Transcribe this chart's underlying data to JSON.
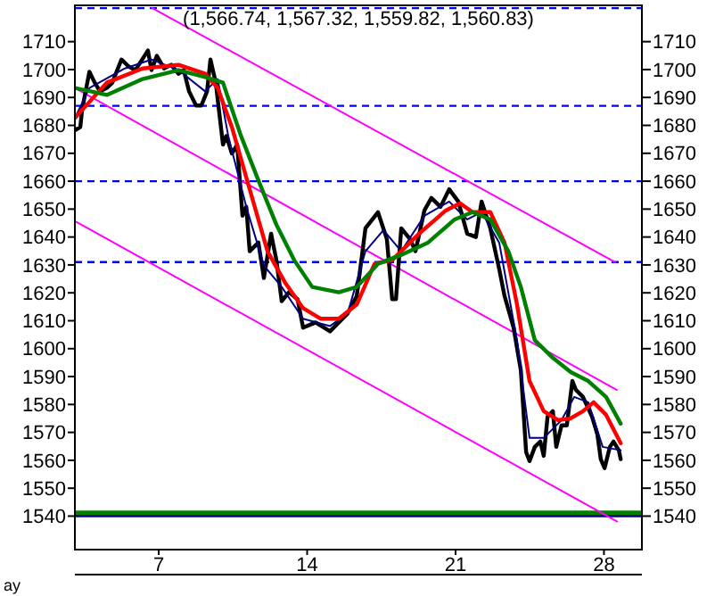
{
  "chart_data": {
    "type": "line",
    "title": "(1,566.74, 1,567.32, 1,559.82, 1,560.83)",
    "annotations": [
      "ay"
    ],
    "xlim": [
      3.045,
      29.79
    ],
    "xticks": [
      7,
      14,
      21,
      28
    ],
    "ylim": [
      1528,
      1723
    ],
    "yticks": [
      1540,
      1550,
      1560,
      1570,
      1580,
      1590,
      1600,
      1610,
      1620,
      1630,
      1640,
      1650,
      1660,
      1670,
      1680,
      1690,
      1700,
      1710
    ],
    "y2lim": [
      1528,
      1723
    ],
    "y2ticks": [
      1540,
      1550,
      1560,
      1570,
      1580,
      1590,
      1600,
      1610,
      1620,
      1630,
      1640,
      1650,
      1660,
      1670,
      1680,
      1690,
      1700,
      1710
    ],
    "grid": false,
    "marker": "none",
    "ref_lines": [
      {
        "axis": "y",
        "value": 1722,
        "color": "#0000ff",
        "line_style": "dashed"
      },
      {
        "axis": "y",
        "value": 1687,
        "color": "#0000ff",
        "line_style": "dashed"
      },
      {
        "axis": "y",
        "value": 1660,
        "color": "#0000ff",
        "line_style": "dashed"
      },
      {
        "axis": "y",
        "value": 1631,
        "color": "#0000ff",
        "line_style": "dashed"
      },
      {
        "axis": "y",
        "value": 1541,
        "color": "#008000",
        "line_style": "solid"
      },
      {
        "axis": "y",
        "value": 1540,
        "color": "#000080",
        "line_style": "solid"
      }
    ],
    "series": [
      {
        "color": "#ff00ff",
        "x": [
          6.7,
          28.53
        ],
        "values": [
          1722,
          1631
        ]
      },
      {
        "color": "#ff00ff",
        "x": [
          3.045,
          28.61
        ],
        "values": [
          1693.4,
          1585.2
        ]
      },
      {
        "color": "#ff00ff",
        "x": [
          3.045,
          28.61
        ],
        "values": [
          1645.7,
          1538.1
        ]
      },
      {
        "color": "#000000",
        "x": [
          3.045,
          3.3,
          3.39,
          3.73,
          3.98,
          4.23,
          4.55,
          4.81,
          5.24,
          5.58,
          5.9,
          6.49,
          6.66,
          6.91,
          7.25,
          7.59,
          7.93,
          8.18,
          8.43,
          8.76,
          9.01,
          9.28,
          9.44,
          9.69,
          10.03,
          10.19,
          10.45,
          10.7,
          10.95,
          11.13,
          11.29,
          11.7,
          11.96,
          12.3,
          12.55,
          12.8,
          13.14,
          13.55,
          13.81,
          14.4,
          15.08,
          15.49,
          15.91,
          16.34,
          16.75,
          17.34,
          17.76,
          18.01,
          18.19,
          18.44,
          18.85,
          19.11,
          19.53,
          19.86,
          20.29,
          20.7,
          21.13,
          21.55,
          21.96,
          22.23,
          22.64,
          23.06,
          23.31,
          23.74,
          24.08,
          24.33,
          24.49,
          24.74,
          25.0,
          25.16,
          25.34,
          25.59,
          25.75,
          26.0,
          26.25,
          26.51,
          26.68,
          27.01,
          27.44,
          27.69,
          27.85,
          28.03,
          28.28,
          28.45,
          28.7,
          28.79
        ],
        "values": [
          1678.2,
          1679.4,
          1685.8,
          1699.2,
          1695.3,
          1692.2,
          1693.4,
          1695.3,
          1703.6,
          1701.1,
          1699.8,
          1706.8,
          1699.8,
          1704.9,
          1700.4,
          1701.7,
          1698.5,
          1699.8,
          1692.2,
          1687.1,
          1687.1,
          1692.2,
          1703.6,
          1695.3,
          1673.1,
          1676.2,
          1669.9,
          1673.1,
          1647.6,
          1650.8,
          1634.9,
          1638.0,
          1625.3,
          1641.2,
          1631.7,
          1617.0,
          1620.2,
          1617.7,
          1607.5,
          1609.4,
          1606.2,
          1609.4,
          1612.6,
          1618.9,
          1643.1,
          1648.9,
          1639.3,
          1617.7,
          1617.7,
          1643.1,
          1639.3,
          1634.9,
          1649.5,
          1654.0,
          1650.8,
          1657.1,
          1652.7,
          1641.2,
          1640.0,
          1652.7,
          1643.1,
          1628.5,
          1618.9,
          1607.5,
          1592.2,
          1562.9,
          1559.7,
          1564.8,
          1566.7,
          1561.6,
          1575.6,
          1577.6,
          1564.8,
          1572.5,
          1572.5,
          1588.4,
          1585.2,
          1582.7,
          1575.6,
          1569.3,
          1560.4,
          1557.2,
          1564.8,
          1566.7,
          1563.6,
          1560.4
        ]
      },
      {
        "color": "#000080",
        "x": [
          3.045,
          3.73,
          5.4,
          6.66,
          7.93,
          9.19,
          9.78,
          10.28,
          11.13,
          11.96,
          12.8,
          13.81,
          15.08,
          15.91,
          16.75,
          17.6,
          18.44,
          19.53,
          20.7,
          21.55,
          22.23,
          23.06,
          23.9,
          24.49,
          25.16,
          26.0,
          26.6,
          27.26,
          27.94,
          28.79
        ],
        "values": [
          1682.6,
          1693.4,
          1700.4,
          1703.6,
          1699.8,
          1692.2,
          1696.6,
          1676.2,
          1650.8,
          1629.8,
          1622.1,
          1610.7,
          1608.1,
          1612.6,
          1634.9,
          1642.5,
          1634.9,
          1647.6,
          1652.7,
          1646.3,
          1648.9,
          1638.0,
          1603.0,
          1568.0,
          1568.0,
          1574.4,
          1582.7,
          1580.8,
          1564.8,
          1563.6
        ]
      },
      {
        "color": "#ff0000",
        "x": [
          3.045,
          4.55,
          6.24,
          7.93,
          9.19,
          9.78,
          10.45,
          11.29,
          12.13,
          12.98,
          13.81,
          14.65,
          15.49,
          16.34,
          17.18,
          18.01,
          19.28,
          20.54,
          21.21,
          21.8,
          22.64,
          23.31,
          23.9,
          24.49,
          25.16,
          25.84,
          26.43,
          27.01,
          27.51,
          28.1,
          28.79
        ],
        "values": [
          1682.6,
          1695.3,
          1700.4,
          1701.7,
          1698.5,
          1693.4,
          1679.4,
          1657.1,
          1634.9,
          1623.4,
          1614.5,
          1610.7,
          1610.7,
          1615.8,
          1630.4,
          1631.7,
          1641.2,
          1649.5,
          1652.1,
          1648.9,
          1648.9,
          1638.0,
          1615.8,
          1588.4,
          1577.6,
          1574.4,
          1575.0,
          1577.6,
          1580.8,
          1576.3,
          1566.1
        ]
      },
      {
        "color": "#008000",
        "x": [
          3.045,
          4.55,
          6.24,
          7.93,
          9.19,
          10.03,
          10.88,
          11.7,
          12.55,
          13.39,
          14.24,
          15.49,
          16.34,
          17.34,
          18.44,
          19.7,
          20.96,
          21.8,
          22.64,
          23.49,
          24.08,
          24.74,
          25.59,
          26.43,
          27.26,
          28.1,
          28.79
        ],
        "values": [
          1693.4,
          1690.9,
          1696.6,
          1699.8,
          1697.3,
          1695.3,
          1676.2,
          1660.3,
          1644.4,
          1631.7,
          1622.1,
          1620.2,
          1622.1,
          1630.4,
          1633.6,
          1638.0,
          1646.3,
          1648.9,
          1646.3,
          1634.9,
          1622.1,
          1603.0,
          1596.7,
          1591.6,
          1588.4,
          1582.7,
          1573.1
        ]
      }
    ]
  }
}
